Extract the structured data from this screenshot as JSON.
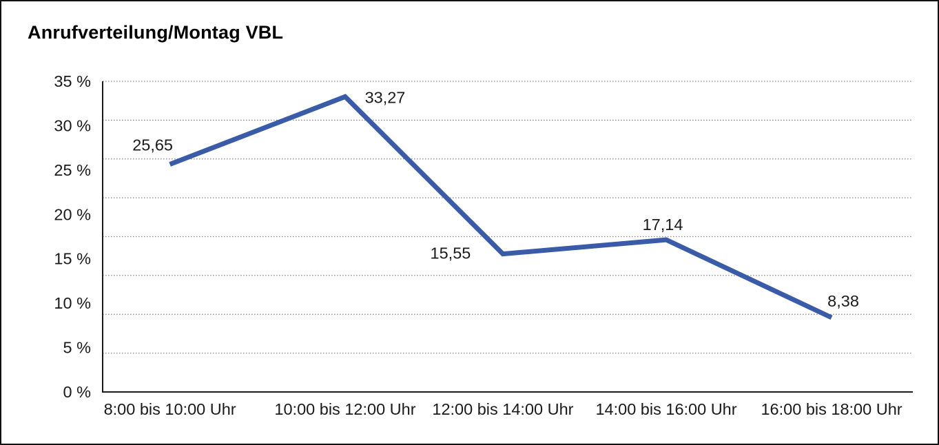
{
  "chart_data": {
    "type": "line",
    "title": "Anrufverteilung/Montag VBL",
    "categories": [
      "8:00 bis 10:00 Uhr",
      "10:00 bis 12:00 Uhr",
      "12:00 bis 14:00 Uhr",
      "14:00 bis 16:00 Uhr",
      "16:00 bis 18:00 Uhr"
    ],
    "values": [
      25.65,
      33.27,
      15.55,
      17.14,
      8.38
    ],
    "data_labels": [
      "25,65",
      "33,27",
      "15,55",
      "17,14",
      "8,38"
    ],
    "y_ticks": [
      "35 %",
      "30 %",
      "25 %",
      "20 %",
      "15 %",
      "10 %",
      "5 %",
      "0 %"
    ],
    "y_tick_values": [
      35,
      30,
      25,
      20,
      15,
      10,
      5,
      0
    ],
    "ylim": [
      0,
      35
    ],
    "xlabel": "",
    "ylabel": "",
    "grid": "horizontal-dotted",
    "legend": "none",
    "line_color": "#3A5BA8",
    "axis_color": "#1a1a1a",
    "grid_color": "#8a8a8a"
  }
}
